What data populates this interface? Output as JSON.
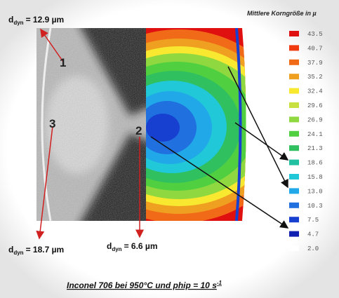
{
  "labels": [
    {
      "symbol": "d",
      "subscript": "dyn",
      "value": "= 12.9 µm"
    },
    {
      "symbol": "d",
      "subscript": "dyn",
      "value": "= 18.7 µm"
    },
    {
      "symbol": "d",
      "subscript": "dyn",
      "value": "= 6.6 µm"
    }
  ],
  "points": [
    "1",
    "2",
    "3"
  ],
  "legend": {
    "title": "Mittlere Korngröße in µ",
    "items": [
      {
        "label": "43.5",
        "color": "#e01010"
      },
      {
        "label": "40.7",
        "color": "#f03a10"
      },
      {
        "label": "37.9",
        "color": "#f06a18"
      },
      {
        "label": "35.2",
        "color": "#f0a020"
      },
      {
        "label": "32.4",
        "color": "#f8e830"
      },
      {
        "label": "29.6",
        "color": "#c8e040"
      },
      {
        "label": "26.9",
        "color": "#90d840"
      },
      {
        "label": "24.1",
        "color": "#50d040"
      },
      {
        "label": "21.3",
        "color": "#30c060"
      },
      {
        "label": "18.6",
        "color": "#20c0a0"
      },
      {
        "label": "15.8",
        "color": "#20c8d8"
      },
      {
        "label": "13.0",
        "color": "#20a8e8"
      },
      {
        "label": "10.3",
        "color": "#2070e0"
      },
      {
        "label": "7.5",
        "color": "#1840d0"
      },
      {
        "label": "4.7",
        "color": "#1020b0"
      },
      {
        "label": "2.0",
        "color": "#ffffff"
      }
    ]
  },
  "caption": {
    "text": "Inconel 706 bei 950°C und phip = 10 s",
    "superscript": "-1"
  }
}
